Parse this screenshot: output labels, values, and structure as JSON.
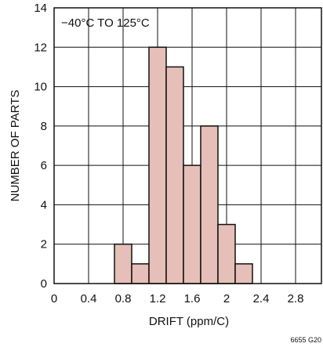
{
  "chart_data": {
    "type": "bar",
    "title": "",
    "annotation": "−40°C TO 125°C",
    "xlabel": "DRIFT (ppm/C)",
    "ylabel": "NUMBER OF PARTS",
    "x_tick_labels": [
      "0",
      "0.4",
      "0.8",
      "1.2",
      "1.6",
      "2",
      "2.4",
      "2.8"
    ],
    "x_tick_values": [
      0,
      0.4,
      0.8,
      1.2,
      1.6,
      2.0,
      2.4,
      2.8
    ],
    "y_tick_labels": [
      "0",
      "2",
      "4",
      "6",
      "8",
      "10",
      "12",
      "14"
    ],
    "y_tick_values": [
      0,
      2,
      4,
      6,
      8,
      10,
      12,
      14
    ],
    "xlim": [
      0,
      3.1
    ],
    "ylim": [
      0,
      14
    ],
    "bin_width": 0.2,
    "bins": [
      {
        "x_start": 0.7,
        "count": 2
      },
      {
        "x_start": 0.9,
        "count": 1
      },
      {
        "x_start": 1.1,
        "count": 12
      },
      {
        "x_start": 1.3,
        "count": 11
      },
      {
        "x_start": 1.5,
        "count": 6
      },
      {
        "x_start": 1.7,
        "count": 8
      },
      {
        "x_start": 1.9,
        "count": 3
      },
      {
        "x_start": 2.1,
        "count": 1
      }
    ],
    "grid": true,
    "bar_color": "#e6bfb8",
    "bar_edge_color": "#111111",
    "grid_color": "#111111",
    "figure_id": "6655 G20"
  }
}
